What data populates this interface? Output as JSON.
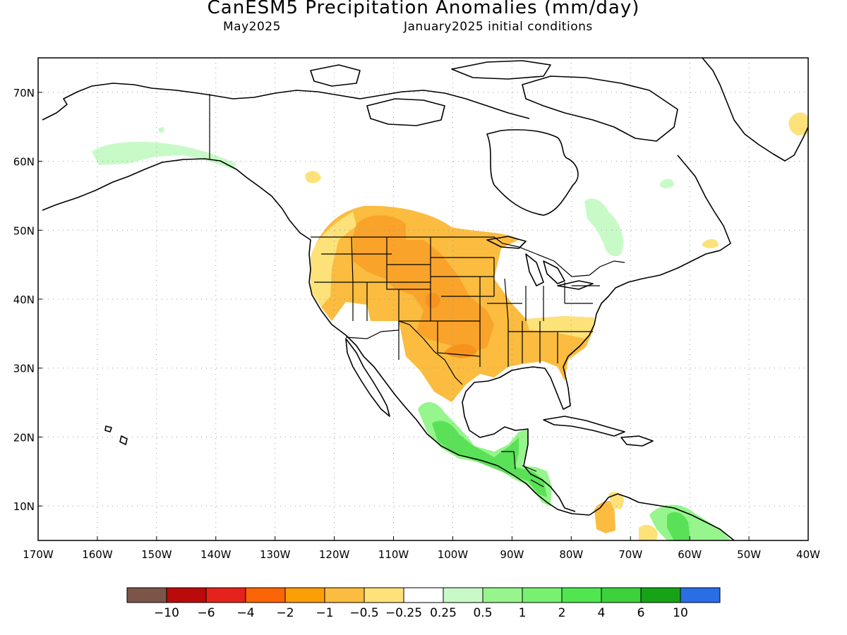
{
  "header": {
    "title": "CanESM5 Precipitation Anomalies (mm/day)",
    "valid_month": "May2025",
    "init": "January2025 initial conditions"
  },
  "map": {
    "projection": "lat-lon",
    "lon_range": [
      -170,
      -40
    ],
    "lat_range": [
      5,
      75
    ],
    "grid": true,
    "lon_ticks": [
      {
        "value": -170,
        "label": "170W"
      },
      {
        "value": -160,
        "label": "160W"
      },
      {
        "value": -150,
        "label": "150W"
      },
      {
        "value": -140,
        "label": "140W"
      },
      {
        "value": -130,
        "label": "130W"
      },
      {
        "value": -120,
        "label": "120W"
      },
      {
        "value": -110,
        "label": "110W"
      },
      {
        "value": -100,
        "label": "100W"
      },
      {
        "value": -90,
        "label": "90W"
      },
      {
        "value": -80,
        "label": "80W"
      },
      {
        "value": -70,
        "label": "70W"
      },
      {
        "value": -60,
        "label": "60W"
      },
      {
        "value": -50,
        "label": "50W"
      },
      {
        "value": -40,
        "label": "40W"
      }
    ],
    "lat_ticks": [
      {
        "value": 10,
        "label": "10N"
      },
      {
        "value": 20,
        "label": "20N"
      },
      {
        "value": 30,
        "label": "30N"
      },
      {
        "value": 40,
        "label": "40N"
      },
      {
        "value": 50,
        "label": "50N"
      },
      {
        "value": 60,
        "label": "60N"
      },
      {
        "value": 70,
        "label": "70N"
      }
    ]
  },
  "anomaly_regions": [
    {
      "name": "great-plains-west-dry",
      "level": "-0.5",
      "color": "#fbbc3f"
    },
    {
      "name": "southern-plains-dry-core",
      "level": "-1",
      "color": "#f9a32b"
    },
    {
      "name": "northwest-light-dry",
      "level": "-0.25",
      "color": "#fde27a"
    },
    {
      "name": "mexico-wet",
      "level": "0.5",
      "color": "#96f58c"
    },
    {
      "name": "central-america-wet",
      "level": "1",
      "color": "#5ae158"
    },
    {
      "name": "alaska-wet",
      "level": "0.25",
      "color": "#c8fac8"
    },
    {
      "name": "quebec-wet",
      "level": "0.25",
      "color": "#c8fac8"
    },
    {
      "name": "venezuela-dry",
      "level": "-0.5",
      "color": "#fbbc3f"
    },
    {
      "name": "south-america-wet",
      "level": "0.5",
      "color": "#96f58c"
    }
  ],
  "legend": {
    "colors": [
      "#7d5448",
      "#bb0a0a",
      "#e5221c",
      "#fb6505",
      "#fb9e07",
      "#fbbc3f",
      "#fde27a",
      "#ffffff",
      "#c8fac8",
      "#96f58c",
      "#78f070",
      "#50e650",
      "#3cd23c",
      "#16a416",
      "#2a6ee6"
    ],
    "labels": [
      "−10",
      "−6",
      "−4",
      "−2",
      "−1",
      "−0.5",
      "−0.25",
      "0.25",
      "0.5",
      "1",
      "2",
      "4",
      "6",
      "10"
    ]
  }
}
